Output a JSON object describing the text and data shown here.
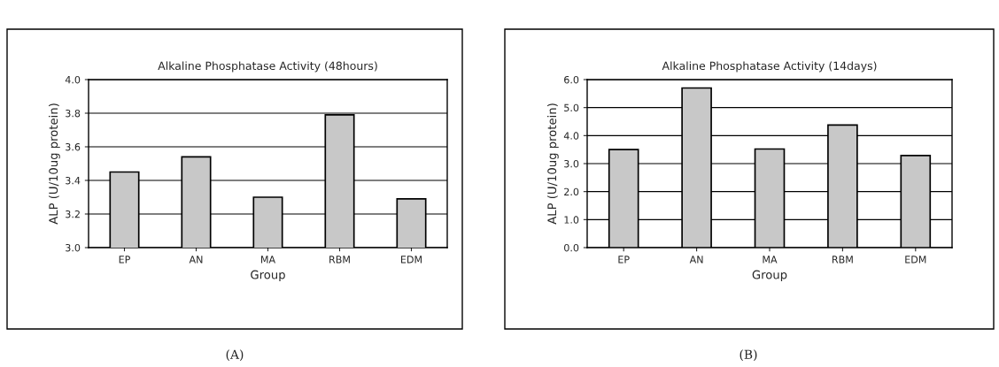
{
  "chart_data": [
    {
      "type": "bar",
      "title": "Alkaline Phosphatase Activity (48hours)",
      "xlabel": "Group",
      "ylabel": "ALP (U/10ug protein)",
      "categories": [
        "EP",
        "AN",
        "MA",
        "RBM",
        "EDM"
      ],
      "values": [
        3.45,
        3.54,
        3.3,
        3.79,
        3.29
      ],
      "color": "#c8c8c8",
      "ylim": [
        3.0,
        4.0
      ],
      "yticks": [
        {
          "value": 3.0,
          "label": "3.0"
        },
        {
          "value": 3.2,
          "label": "3.2"
        },
        {
          "value": 3.4,
          "label": "3.4"
        },
        {
          "value": 3.6,
          "label": "3.6"
        },
        {
          "value": 3.8,
          "label": "3.8"
        },
        {
          "value": 4.0,
          "label": "4.0"
        }
      ],
      "grid": "y",
      "legend": false,
      "annotations": [
        "(A)"
      ]
    },
    {
      "type": "bar",
      "title": "Alkaline Phosphatase Activity (14days)",
      "xlabel": "Group",
      "ylabel": "ALP (U/10ug protein)",
      "categories": [
        "EP",
        "AN",
        "MA",
        "RBM",
        "EDM"
      ],
      "values": [
        3.5,
        5.7,
        3.52,
        4.38,
        3.29
      ],
      "color": "#c8c8c8",
      "ylim": [
        0.0,
        6.0
      ],
      "yticks": [
        {
          "value": 0.0,
          "label": "0.0"
        },
        {
          "value": 1.0,
          "label": "1.0"
        },
        {
          "value": 2.0,
          "label": "2.0"
        },
        {
          "value": 3.0,
          "label": "3.0"
        },
        {
          "value": 4.0,
          "label": "4.0"
        },
        {
          "value": 5.0,
          "label": "5.0"
        },
        {
          "value": 6.0,
          "label": "6.0"
        }
      ],
      "grid": "y",
      "legend": false,
      "annotations": [
        "(B)"
      ]
    }
  ]
}
